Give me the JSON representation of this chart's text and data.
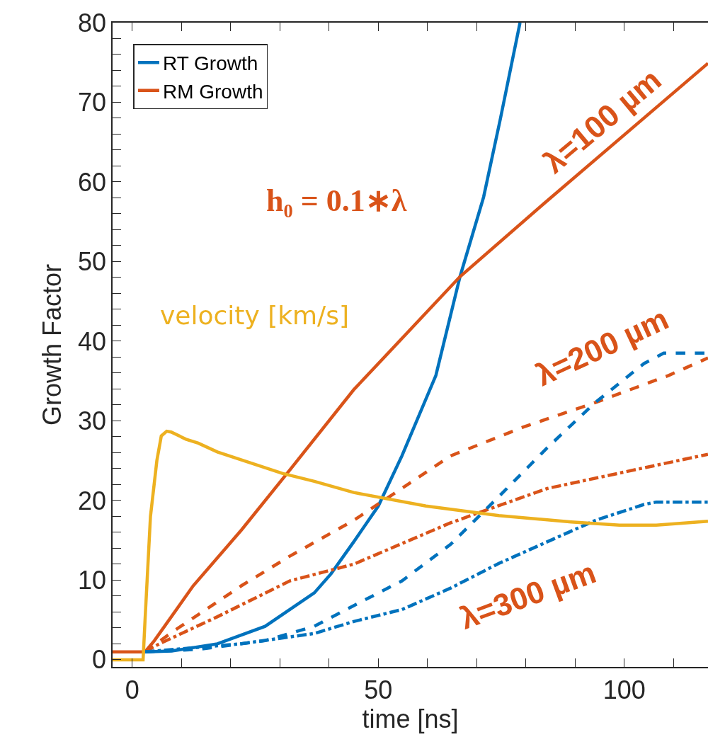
{
  "chart_data": {
    "type": "line",
    "xlabel": "time [ns]",
    "ylabel": "Growth Factor",
    "xlim": [
      -4,
      117
    ],
    "ylim": [
      -0.9,
      80
    ],
    "xticks": [
      0,
      {
        "value": 10,
        "label": null
      },
      {
        "value": 20,
        "label": null
      },
      {
        "value": 30,
        "label": null
      },
      {
        "value": 40,
        "label": null
      },
      50,
      {
        "value": 60,
        "label": null
      },
      {
        "value": 70,
        "label": null
      },
      {
        "value": 80,
        "label": null
      },
      {
        "value": 90,
        "label": null
      },
      100,
      {
        "value": 110,
        "label": null
      }
    ],
    "yticks": [
      0,
      {
        "value": 2,
        "label": null
      },
      {
        "value": 4,
        "label": null
      },
      {
        "value": 6,
        "label": null
      },
      {
        "value": 8,
        "label": null
      },
      10,
      {
        "value": 12,
        "label": null
      },
      {
        "value": 14,
        "label": null
      },
      {
        "value": 16,
        "label": null
      },
      {
        "value": 18,
        "label": null
      },
      20,
      {
        "value": 22,
        "label": null
      },
      {
        "value": 24,
        "label": null
      },
      {
        "value": 26,
        "label": null
      },
      {
        "value": 28,
        "label": null
      },
      30,
      {
        "value": 32,
        "label": null
      },
      {
        "value": 34,
        "label": null
      },
      {
        "value": 36,
        "label": null
      },
      {
        "value": 38,
        "label": null
      },
      40,
      {
        "value": 42,
        "label": null
      },
      {
        "value": 44,
        "label": null
      },
      {
        "value": 46,
        "label": null
      },
      {
        "value": 48,
        "label": null
      },
      50,
      {
        "value": 52,
        "label": null
      },
      {
        "value": 54,
        "label": null
      },
      {
        "value": 56,
        "label": null
      },
      {
        "value": 58,
        "label": null
      },
      60,
      {
        "value": 62,
        "label": null
      },
      {
        "value": 64,
        "label": null
      },
      {
        "value": 66,
        "label": null
      },
      {
        "value": 68,
        "label": null
      },
      70,
      {
        "value": 72,
        "label": null
      },
      {
        "value": 74,
        "label": null
      },
      {
        "value": 76,
        "label": null
      },
      {
        "value": 78,
        "label": null
      },
      80
    ],
    "legend": "top left",
    "marker": "none",
    "series": [
      {
        "name": "RT Growth",
        "color": "#0072bd",
        "line_style": "solid",
        "x": [
          2.6,
          8,
          17.3,
          27,
          37,
          40.4,
          45,
          50,
          54.8,
          61.7,
          66.6,
          71.4,
          74.8,
          78.8
        ],
        "values": [
          1,
          1.1,
          2.0,
          4.2,
          8.4,
          10.8,
          14.8,
          19.3,
          25.6,
          35.7,
          48.1,
          58.1,
          67.9,
          80
        ]
      },
      {
        "name": "RM Growth",
        "color": "#d95319",
        "line_style": "solid",
        "x": [
          -4,
          2.6,
          4.5,
          12.4,
          22.2,
          32.1,
          45,
          66.6,
          83.5,
          117
        ],
        "values": [
          1,
          1,
          2.4,
          9.3,
          16.3,
          23.9,
          33.9,
          48.1,
          57.2,
          74.9
        ]
      },
      {
        "color": "#d95319",
        "line_style": "dashed",
        "x": [
          2.6,
          8.4,
          22.2,
          32,
          45,
          64.7,
          79.4,
          94.1,
          109,
          117
        ],
        "values": [
          1,
          3.6,
          9.3,
          13,
          17.5,
          25.6,
          29.2,
          32.3,
          35.7,
          37.9
        ]
      },
      {
        "color": "#d95319",
        "line_style": "dashdot",
        "x": [
          2.6,
          5.5,
          17.3,
          32,
          45,
          64.7,
          84.3,
          104,
          117
        ],
        "values": [
          1,
          2.0,
          5.4,
          9.9,
          12.0,
          17.2,
          21.5,
          24.1,
          25.8
        ]
      },
      {
        "color": "#0072bd",
        "line_style": "dashed",
        "x": [
          2.6,
          13.4,
          27,
          37,
          45,
          54.8,
          64.7,
          74.5,
          84.3,
          94.1,
          104,
          108,
          117
        ],
        "values": [
          1,
          1.3,
          2.4,
          4.2,
          6.8,
          9.9,
          14.5,
          20.5,
          26.6,
          32.3,
          37.2,
          38.5,
          38.5
        ]
      },
      {
        "color": "#0072bd",
        "line_style": "dashdot",
        "x": [
          2.6,
          22,
          37,
          45,
          54.8,
          64.7,
          74.5,
          84.3,
          94.1,
          104,
          106.5,
          117
        ],
        "values": [
          1,
          2.0,
          3.3,
          4.8,
          6.3,
          9.0,
          12.1,
          14.8,
          17.5,
          19.5,
          19.8,
          19.8
        ]
      },
      {
        "color": "#edb120",
        "line_style": "solid",
        "x": [
          -4,
          2.2,
          2.6,
          3.7,
          5.0,
          5.9,
          7.0,
          7.9,
          10.9,
          13.4,
          17.3,
          22.2,
          30.5,
          37,
          45,
          59.7,
          74.5,
          89.2,
          99,
          106.5,
          117
        ],
        "values": [
          0,
          0,
          5,
          18,
          25,
          28.1,
          28.7,
          28.6,
          27.7,
          27.2,
          26.1,
          25.1,
          23.4,
          22.4,
          21.0,
          19.3,
          18.1,
          17.3,
          16.9,
          16.9,
          17.4
        ]
      }
    ],
    "annotations": [
      "h₀ = 0.1∗λ",
      "velocity [km/s]",
      "λ=100 µm",
      "λ=200 µm",
      "λ=300 µm"
    ]
  }
}
